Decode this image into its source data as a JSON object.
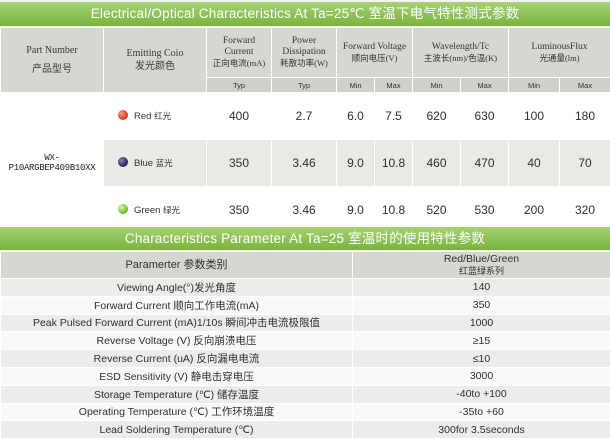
{
  "section1": {
    "title": "Electrical/Optical Characteristics At Ta=25℃  室温下电气特性测式参数",
    "headers": {
      "part_number": "Part Number",
      "part_number_cn": "产品型号",
      "emitting_color": "Emitting Coio",
      "emitting_color_cn": "发光颜色",
      "forward_current": "Forward Current",
      "forward_current_cn": "正向电流(mA)",
      "power_dissipation": "Power Dissipation",
      "power_dissipation_cn": "耗散功率(W)",
      "forward_voltage": "Forward Voltage",
      "forward_voltage_cn": "顺向电压(V)",
      "wavelength": "Wavelength/Tc",
      "wavelength_cn": "主波长(nm)/色温(K)",
      "luminous_flux": "LuminousFlux",
      "luminous_flux_cn": "光通量(lm)"
    },
    "subheaders": {
      "typ1": "Typ",
      "typ2": "Typ",
      "vf_min": "Min",
      "vf_max": "Max",
      "wl_min": "Min",
      "wl_max": "Max",
      "lf_min": "Min",
      "lf_max": "Max"
    },
    "part_number": "WX-P10ARGBEP409B10XX",
    "rows": [
      {
        "color": "Red",
        "color_cn": "红光",
        "dot": "#e8462d",
        "current": "400",
        "power": "2.7",
        "vf_min": "6.0",
        "vf_max": "7.5",
        "wl_min": "620",
        "wl_max": "630",
        "lf_min": "100",
        "lf_max": "180"
      },
      {
        "color": "Blue",
        "color_cn": "蓝光",
        "dot": "#3b2f63",
        "current": "350",
        "power": "3.46",
        "vf_min": "9.0",
        "vf_max": "10.8",
        "wl_min": "460",
        "wl_max": "470",
        "lf_min": "40",
        "lf_max": "70"
      },
      {
        "color": "Green",
        "color_cn": "绿光",
        "dot": "#7ec840",
        "current": "350",
        "power": "3.46",
        "vf_min": "9.0",
        "vf_max": "10.8",
        "wl_min": "520",
        "wl_max": "530",
        "lf_min": "200",
        "lf_max": "320"
      }
    ]
  },
  "section2": {
    "title": "Characteristics Parameter At Ta=25  室温时的使用特性参数",
    "header_param": "Paramerter  参数类别",
    "header_value": "Red/Blue/Green",
    "header_value_cn": "红蓝绿系列",
    "rows": [
      {
        "param": "Viewing Angle(°)发光角度",
        "value": "140"
      },
      {
        "param": "Forward Current 顺向工作电流(mA)",
        "value": "350"
      },
      {
        "param": "Peak Pulsed Forward Current (mA)1/10s  瞬间冲击电流极限值",
        "value": "1000"
      },
      {
        "param": "Reverse Voltage (V) 反向崩溃电压",
        "value": "≥15"
      },
      {
        "param": "Reverse Current (uA) 反向漏电电流",
        "value": "≤10"
      },
      {
        "param": "ESD Sensitivity (V) 静电击穿电压",
        "value": "3000"
      },
      {
        "param": "Storage Temperature (℃) 储存温度",
        "value": "-40to +100"
      },
      {
        "param": "Operating Temperature (℃) 工作环境温度",
        "value": "-35to +60"
      },
      {
        "param": "Lead Soldering Temperature (℃)",
        "value": "300for 3.5seconds"
      }
    ]
  },
  "colors": {
    "accent_green": "#8cc454",
    "header_gray": "#d6d6d3"
  }
}
